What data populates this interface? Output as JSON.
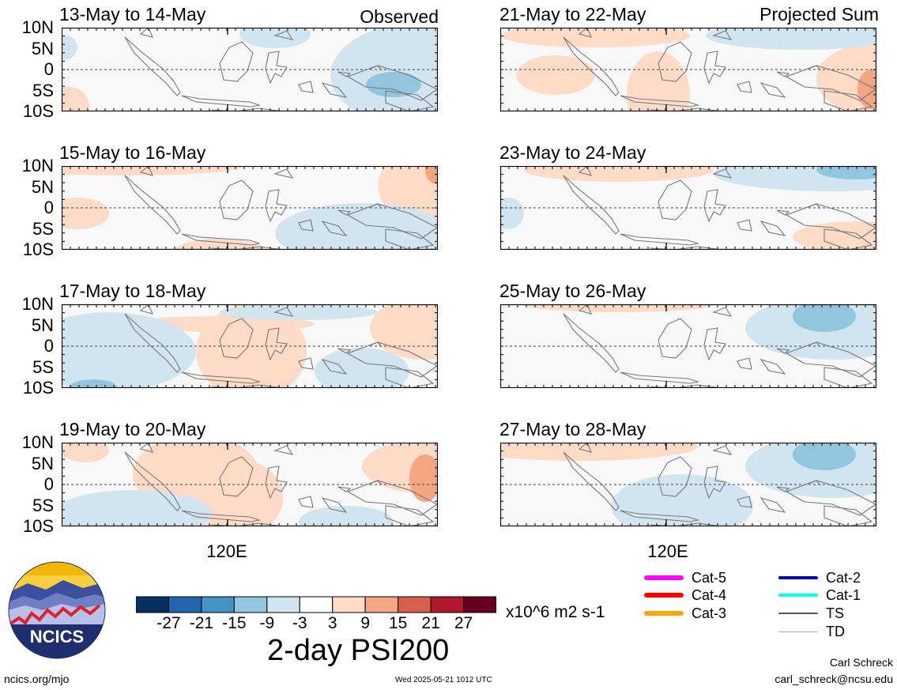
{
  "figure": {
    "title": "2-day PSI200",
    "units": "x10^6 m2 s-1",
    "left_column_note": "Observed",
    "right_column_note": "Projected Sum",
    "lon_label": "120E",
    "lat_labels": [
      "10N",
      "5N",
      "0",
      "5S",
      "10S"
    ],
    "website": "ncics.org/mjo",
    "timestamp": "Wed 2025-05-21 1012 UTC",
    "author": "Carl Schreck",
    "email": "carl_schreck@ncsu.edu",
    "logo_text": "NCICS"
  },
  "chart_data": {
    "type": "heatmap",
    "colorbar": {
      "tick_labels": [
        "-27",
        "-21",
        "-15",
        "-9",
        "-3",
        "3",
        "9",
        "15",
        "21",
        "27"
      ],
      "colors": [
        "#08305e",
        "#2166ac",
        "#4393c3",
        "#92c5de",
        "#d1e5f0",
        "#ffffff",
        "#fddbc7",
        "#f4a582",
        "#d6604d",
        "#b2182b",
        "#67001f"
      ]
    },
    "panels": [
      {
        "title": "13-May to 14-May"
      },
      {
        "title": "15-May to 16-May"
      },
      {
        "title": "17-May to 18-May"
      },
      {
        "title": "19-May to 20-May"
      },
      {
        "title": "21-May to 22-May"
      },
      {
        "title": "23-May to 24-May"
      },
      {
        "title": "25-May to 26-May"
      },
      {
        "title": "27-May to 28-May"
      }
    ]
  },
  "legend": {
    "items": [
      {
        "label": "Cat-5",
        "color": "#ff00ff"
      },
      {
        "label": "Cat-4",
        "color": "#ff0000"
      },
      {
        "label": "Cat-3",
        "color": "#ffa500"
      },
      {
        "label": "Cat-2",
        "color": "#0000cd"
      },
      {
        "label": "Cat-1",
        "color": "#00ffff"
      },
      {
        "label": "TS",
        "color": "#555555"
      },
      {
        "label": "TD",
        "color": "#aaaaaa"
      }
    ]
  }
}
